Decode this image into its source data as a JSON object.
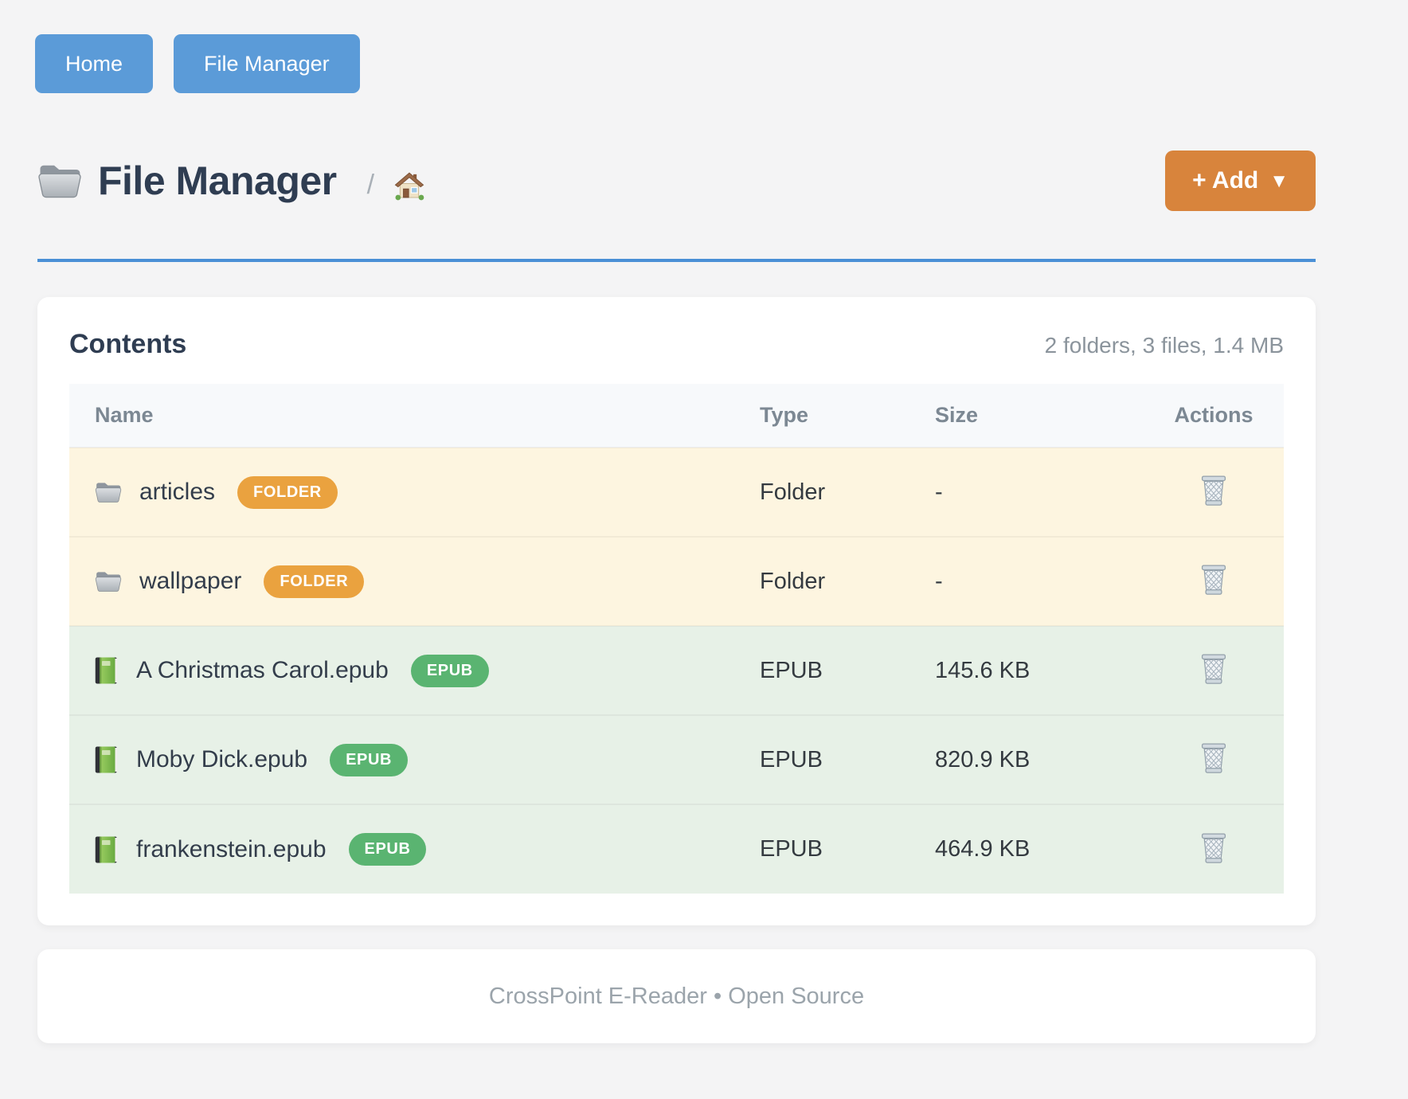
{
  "nav": {
    "home_label": "Home",
    "file_manager_label": "File Manager"
  },
  "header": {
    "title": "File Manager",
    "breadcrumb_separator": "/",
    "add_button": {
      "label": "+ Add",
      "caret": "▼"
    }
  },
  "contents": {
    "heading": "Contents",
    "summary": "2 folders, 3 files, 1.4 MB",
    "columns": [
      "Name",
      "Type",
      "Size",
      "Actions"
    ],
    "rows": [
      {
        "name": "articles",
        "badge": "FOLDER",
        "type": "Folder",
        "size": "-"
      },
      {
        "name": "wallpaper",
        "badge": "FOLDER",
        "type": "Folder",
        "size": "-"
      },
      {
        "name": "A Christmas Carol.epub",
        "badge": "EPUB",
        "type": "EPUB",
        "size": "145.6 KB"
      },
      {
        "name": "Moby Dick.epub",
        "badge": "EPUB",
        "type": "EPUB",
        "size": "820.9 KB"
      },
      {
        "name": "frankenstein.epub",
        "badge": "EPUB",
        "type": "EPUB",
        "size": "464.9 KB"
      }
    ]
  },
  "footer": {
    "text": "CrossPoint E-Reader • Open Source"
  },
  "icons": {
    "page_title": "folder-icon",
    "breadcrumb": "home-icon",
    "folder_row": "folder-icon",
    "epub_row": "book-icon",
    "delete": "trash-icon",
    "add_caret": "caret-down-icon"
  },
  "colors": {
    "primary-blue": "#5b9bd8",
    "divider-blue": "#4a90d6",
    "accent-orange": "#d8843c",
    "badge-orange": "#eaa23f",
    "badge-green": "#5ab471",
    "row-folder-bg": "#fdf5e0",
    "row-epub-bg": "#e7f1e7",
    "heading-navy": "#2f3d52"
  }
}
